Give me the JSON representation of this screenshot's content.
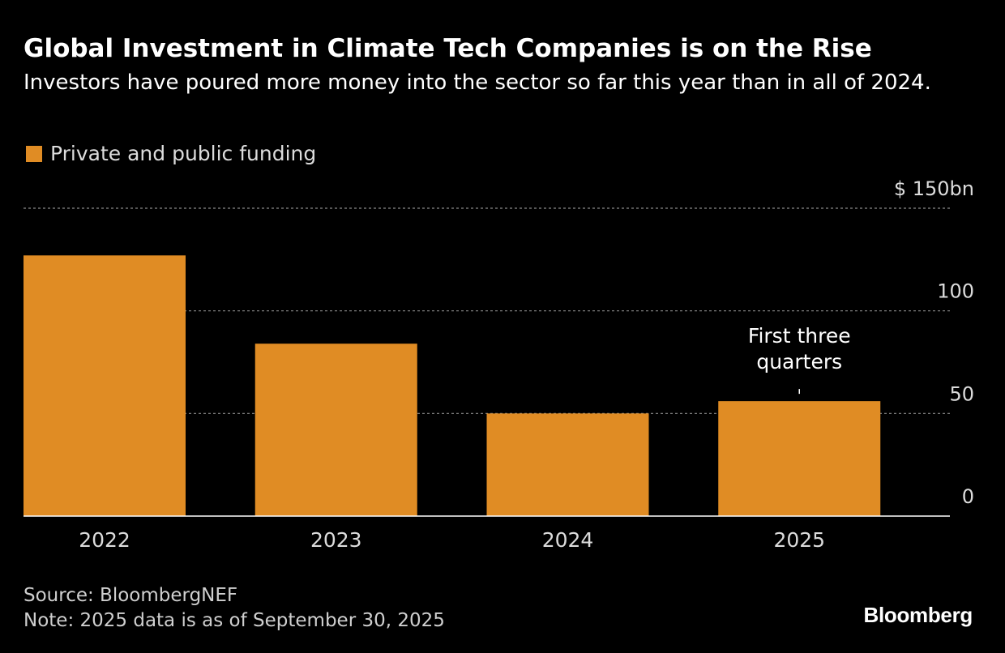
{
  "title": "Global Investment in Climate Tech Companies is on the Rise",
  "subtitle": "Investors have poured more money into the sector so far this year than in all of 2024.",
  "legend": {
    "label": "Private and public funding",
    "color": "#e08c24"
  },
  "footer": {
    "source": "Source: BloombergNEF",
    "note": "Note: 2025 data is as of September 30, 2025"
  },
  "brand": "Bloomberg",
  "chart_data": {
    "type": "bar",
    "categories": [
      "2022",
      "2023",
      "2024",
      "2025"
    ],
    "series": [
      {
        "name": "Private and public funding",
        "values": [
          127,
          84,
          50,
          56
        ]
      }
    ],
    "ylim": [
      0,
      150
    ],
    "yticks": [
      0,
      50,
      100,
      150
    ],
    "ytick_labels": [
      "0",
      "50",
      "100",
      "$ 150bn"
    ],
    "grid": true,
    "annotation": {
      "category": "2025",
      "lines": [
        "First three",
        "quarters"
      ]
    },
    "colors": {
      "bar": "#e08c24",
      "grid": "#8a8a8a",
      "axis": "#ffffff",
      "tick_text": "#dcdcdc"
    }
  }
}
